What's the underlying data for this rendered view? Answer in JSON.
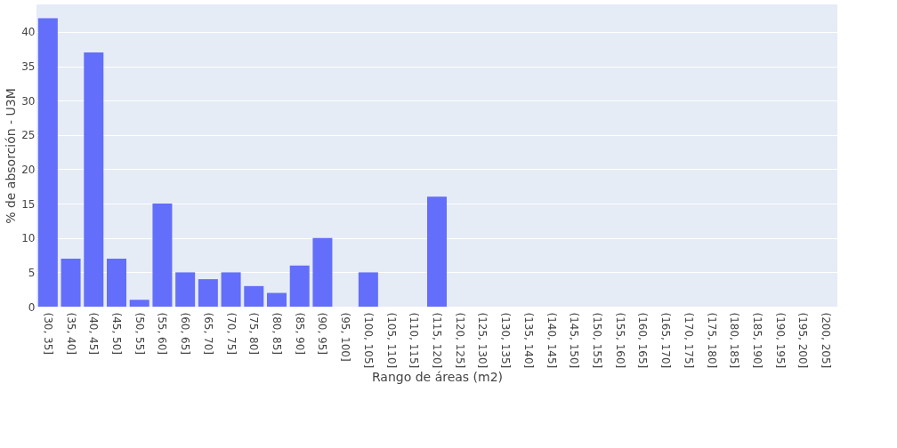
{
  "chart_data": {
    "type": "bar",
    "xlabel": "Rango de áreas (m2)",
    "ylabel": "% de absorción - U3M",
    "categories": [
      "(30, 35]",
      "(35, 40]",
      "(40, 45]",
      "(45, 50]",
      "(50, 55]",
      "(55, 60]",
      "(60, 65]",
      "(65, 70]",
      "(70, 75]",
      "(75, 80]",
      "(80, 85]",
      "(85, 90]",
      "(90, 95]",
      "(95, 100]",
      "(100, 105]",
      "(105, 110]",
      "(110, 115]",
      "(115, 120]",
      "(120, 125]",
      "(125, 130]",
      "(130, 135]",
      "(135, 140]",
      "(140, 145]",
      "(145, 150]",
      "(150, 155]",
      "(155, 160]",
      "(160, 165]",
      "(165, 170]",
      "(170, 175]",
      "(175, 180]",
      "(180, 185]",
      "(185, 190]",
      "(190, 195]",
      "(195, 200]",
      "(200, 205]"
    ],
    "values": [
      42,
      7,
      37,
      7,
      1,
      15,
      5,
      4,
      5,
      3,
      2,
      6,
      10,
      0,
      5,
      0,
      0,
      16,
      0,
      0,
      0,
      0,
      0,
      0,
      0,
      0,
      0,
      0,
      0,
      0,
      0,
      0,
      0,
      0,
      0
    ],
    "color": "#636efa",
    "ylim": [
      0,
      44
    ],
    "yticks": [
      0,
      5,
      10,
      15,
      20,
      25,
      30,
      35,
      40
    ],
    "grid": "y"
  }
}
